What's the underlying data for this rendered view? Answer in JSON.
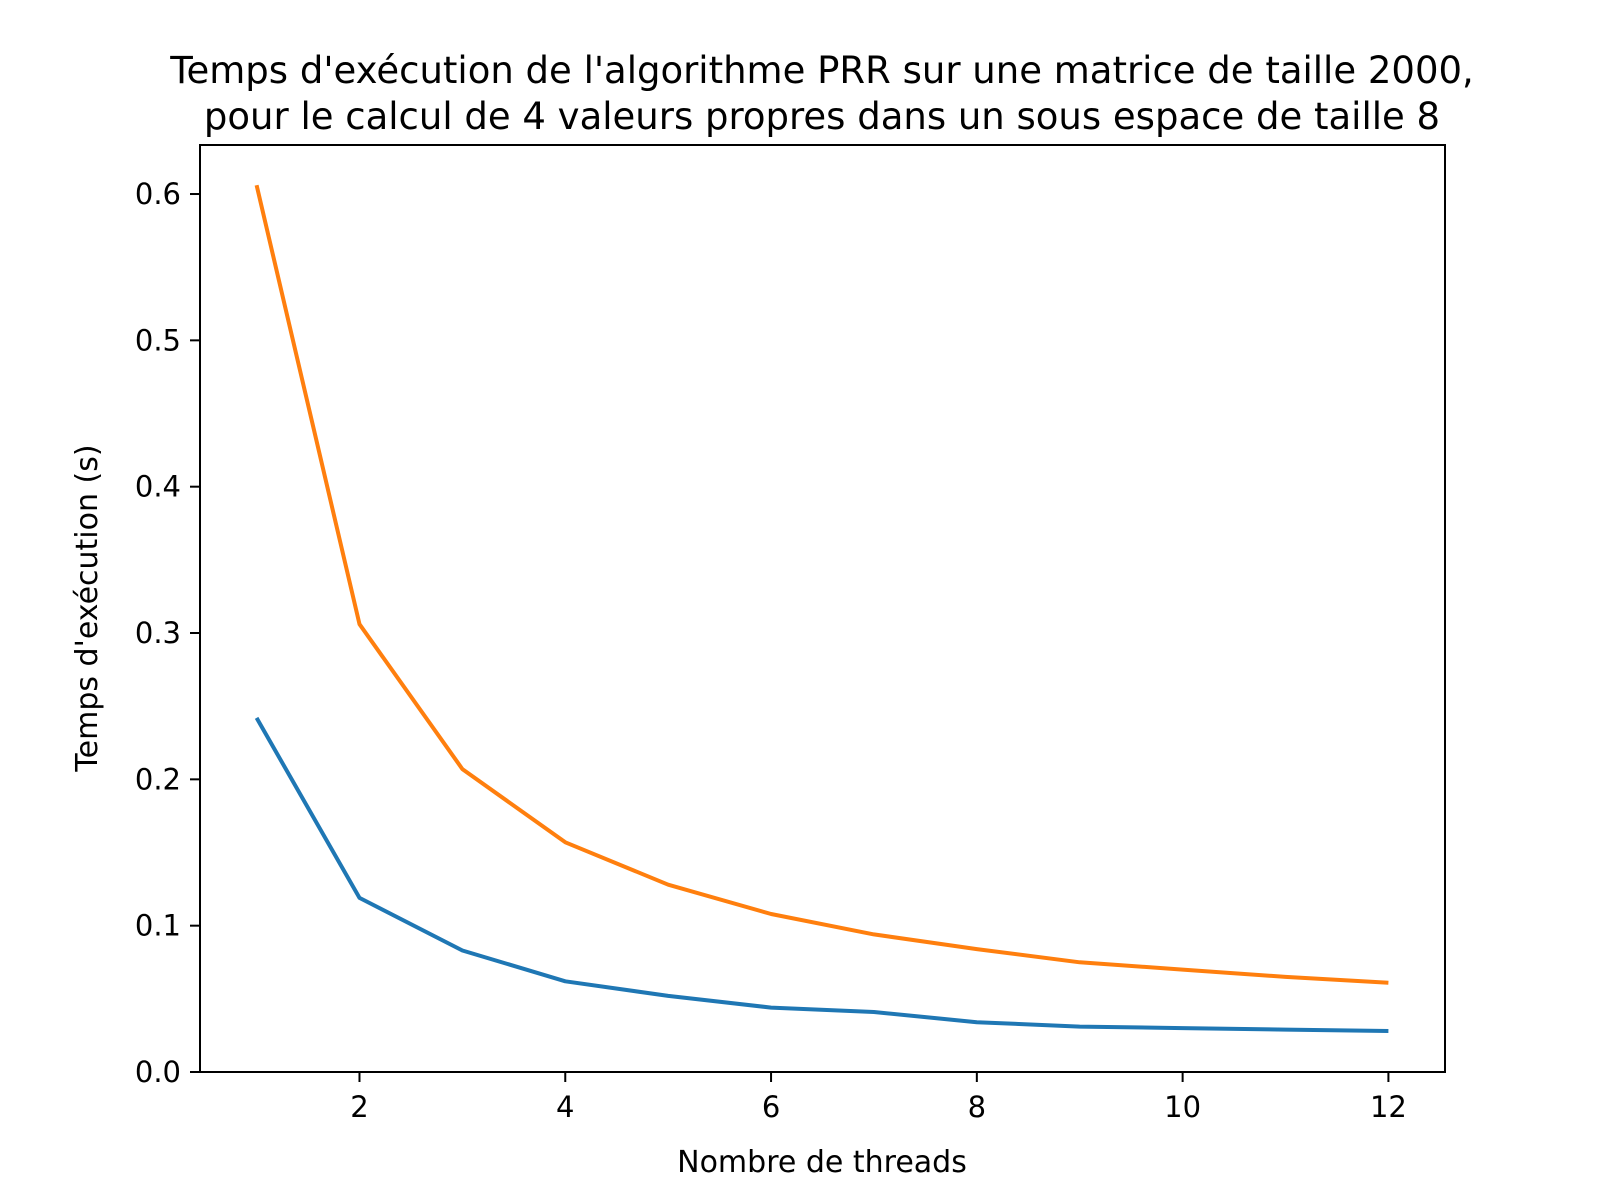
{
  "chart_data": {
    "type": "line",
    "title_lines": [
      "Temps d'exécution de l'algorithme PRR sur une matrice de taille 2000,",
      "pour le calcul de 4 valeurs propres dans un sous espace de taille 8"
    ],
    "xlabel": "Nombre de threads",
    "ylabel": "Temps d'exécution (s)",
    "xlim": [
      0.45,
      12.55
    ],
    "ylim": [
      0.0,
      0.6335
    ],
    "xticks": [
      2,
      4,
      6,
      8,
      10,
      12
    ],
    "xtick_labels": [
      "2",
      "4",
      "6",
      "8",
      "10",
      "12"
    ],
    "yticks": [
      0.0,
      0.1,
      0.2,
      0.3,
      0.4,
      0.5,
      0.6
    ],
    "ytick_labels": [
      "0.0",
      "0.1",
      "0.2",
      "0.3",
      "0.4",
      "0.5",
      "0.6"
    ],
    "grid": false,
    "legend": "none",
    "series": [
      {
        "color": "#1f77b4",
        "x": [
          1,
          2,
          3,
          4,
          5,
          6,
          7,
          8,
          9,
          10,
          11,
          12
        ],
        "y": [
          0.242,
          0.119,
          0.083,
          0.062,
          0.052,
          0.044,
          0.041,
          0.034,
          0.031,
          0.03,
          0.029,
          0.028
        ]
      },
      {
        "color": "#ff7f0e",
        "x": [
          1,
          2,
          3,
          4,
          5,
          6,
          7,
          8,
          9,
          10,
          11,
          12
        ],
        "y": [
          0.606,
          0.306,
          0.207,
          0.157,
          0.128,
          0.108,
          0.094,
          0.084,
          0.075,
          0.07,
          0.065,
          0.061
        ]
      }
    ]
  }
}
